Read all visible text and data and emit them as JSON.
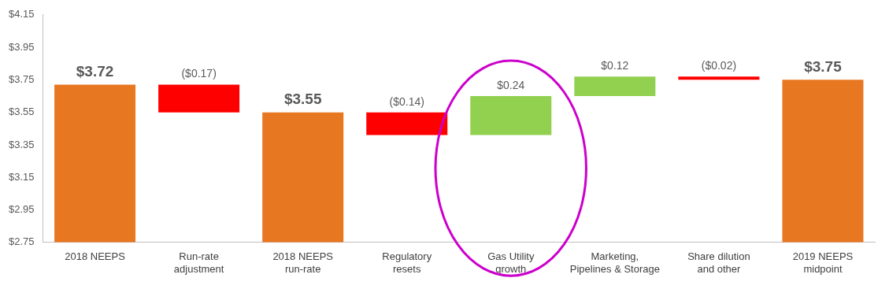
{
  "chart_data": {
    "type": "bar",
    "categories": [
      "2018 NEEPS",
      "Run-rate\nadjustment",
      "2018 NEEPS\nrun-rate",
      "Regulatory\nresets",
      "Gas Utility\ngrowth",
      "Marketing,\nPipelines & Storage",
      "Share dilution\nand other",
      "2019 NEEPS\nmidpoint"
    ],
    "base": [
      2.75,
      3.72,
      2.75,
      3.55,
      3.41,
      3.65,
      3.77,
      2.75
    ],
    "values": [
      0.97,
      -0.17,
      0.8,
      -0.14,
      0.24,
      0.12,
      -0.02,
      1.0
    ],
    "colors": [
      "#e87722",
      "#ff0000",
      "#e87722",
      "#ff0000",
      "#92d050",
      "#92d050",
      "#ff0000",
      "#e87722"
    ],
    "value_labels": [
      "$3.72",
      "($0.17)",
      "$3.55",
      "($0.14)",
      "$0.24",
      "$0.12",
      "($0.02)",
      "$3.75"
    ],
    "ylim": [
      2.75,
      4.15
    ],
    "yticks": [
      {
        "value": 2.75,
        "label": "$2.75"
      },
      {
        "value": 2.95,
        "label": "$2.95"
      },
      {
        "value": 3.15,
        "label": "$3.15"
      },
      {
        "value": 3.35,
        "label": "$3.35"
      },
      {
        "value": 3.55,
        "label": "$3.55"
      },
      {
        "value": 3.75,
        "label": "$3.75"
      },
      {
        "value": 3.95,
        "label": "$3.95"
      },
      {
        "value": 4.15,
        "label": "$4.15"
      }
    ],
    "grid": false,
    "legend": false
  }
}
